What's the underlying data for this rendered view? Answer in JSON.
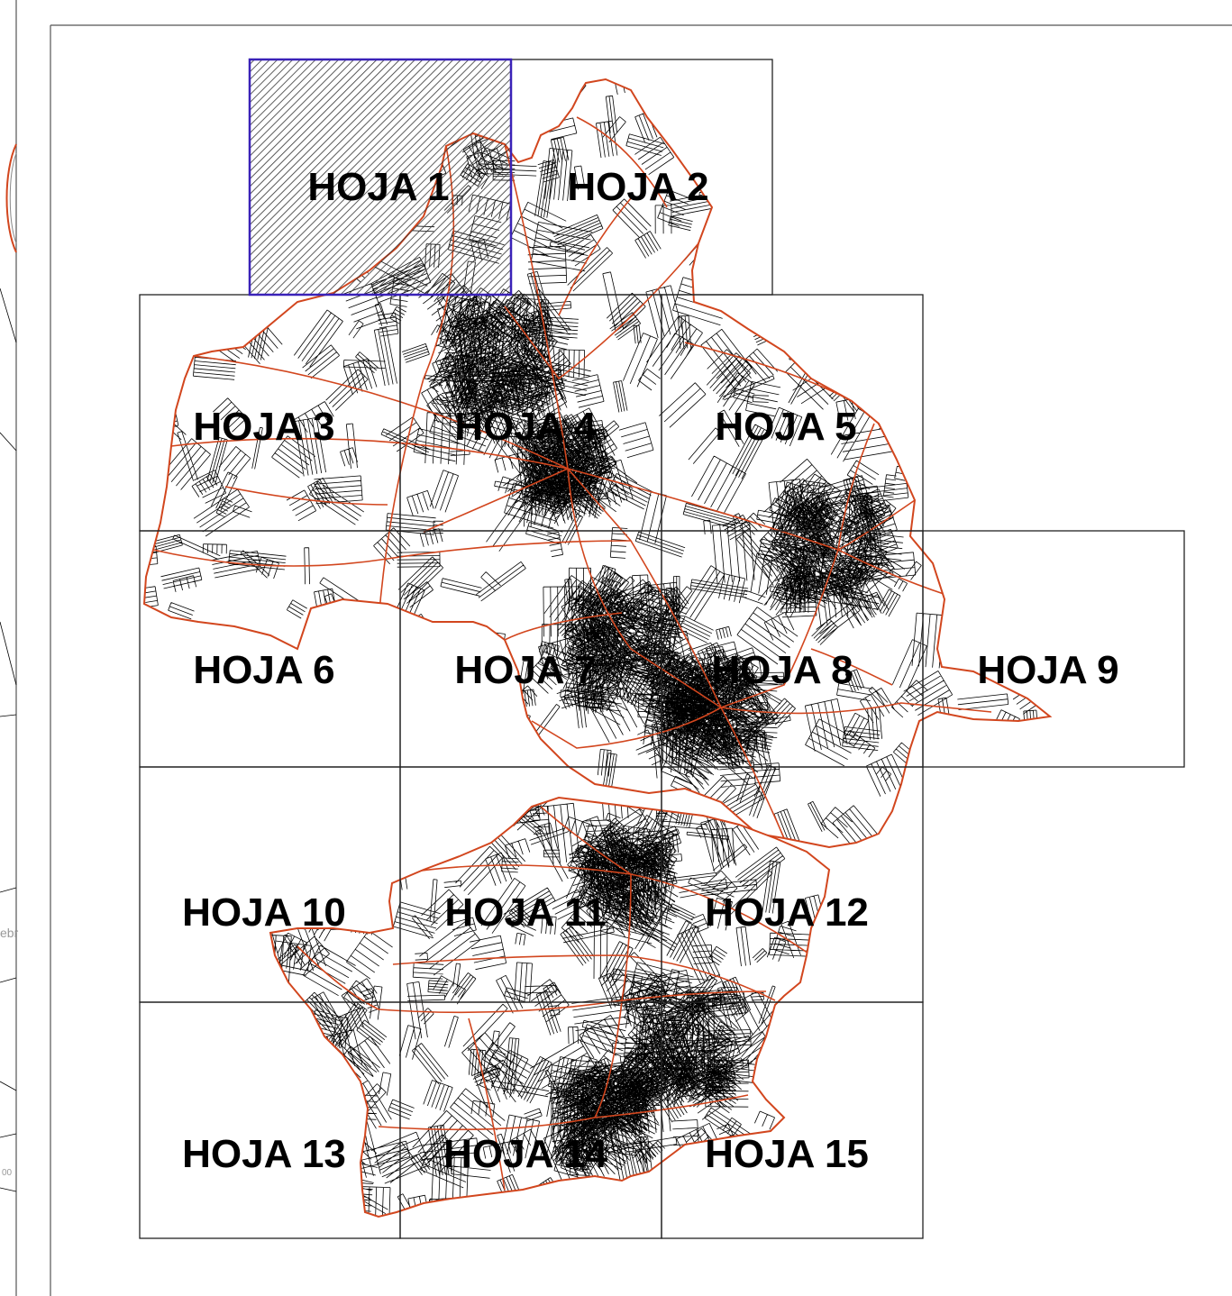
{
  "map": {
    "sheets": [
      {
        "id": 1,
        "label": "HOJA 1",
        "selected": true
      },
      {
        "id": 2,
        "label": "HOJA 2"
      },
      {
        "id": 3,
        "label": "HOJA 3"
      },
      {
        "id": 4,
        "label": "HOJA 4"
      },
      {
        "id": 5,
        "label": "HOJA 5"
      },
      {
        "id": 6,
        "label": "HOJA 6"
      },
      {
        "id": 7,
        "label": "HOJA 7"
      },
      {
        "id": 8,
        "label": "HOJA 8"
      },
      {
        "id": 9,
        "label": "HOJA 9"
      },
      {
        "id": 10,
        "label": "HOJA 10"
      },
      {
        "id": 11,
        "label": "HOJA 11"
      },
      {
        "id": 12,
        "label": "HOJA 12"
      },
      {
        "id": 13,
        "label": "HOJA 13"
      },
      {
        "id": 14,
        "label": "HOJA 14"
      },
      {
        "id": 15,
        "label": "HOJA 15"
      }
    ],
    "left_edge_fragments": [
      "ebr",
      "00"
    ],
    "colors": {
      "selection_border": "#3a22b8",
      "selection_hatch": "#333333",
      "parcel_lines": "#000000",
      "boundary_lines": "#d2461e",
      "sheet_grid": "#222222"
    }
  }
}
